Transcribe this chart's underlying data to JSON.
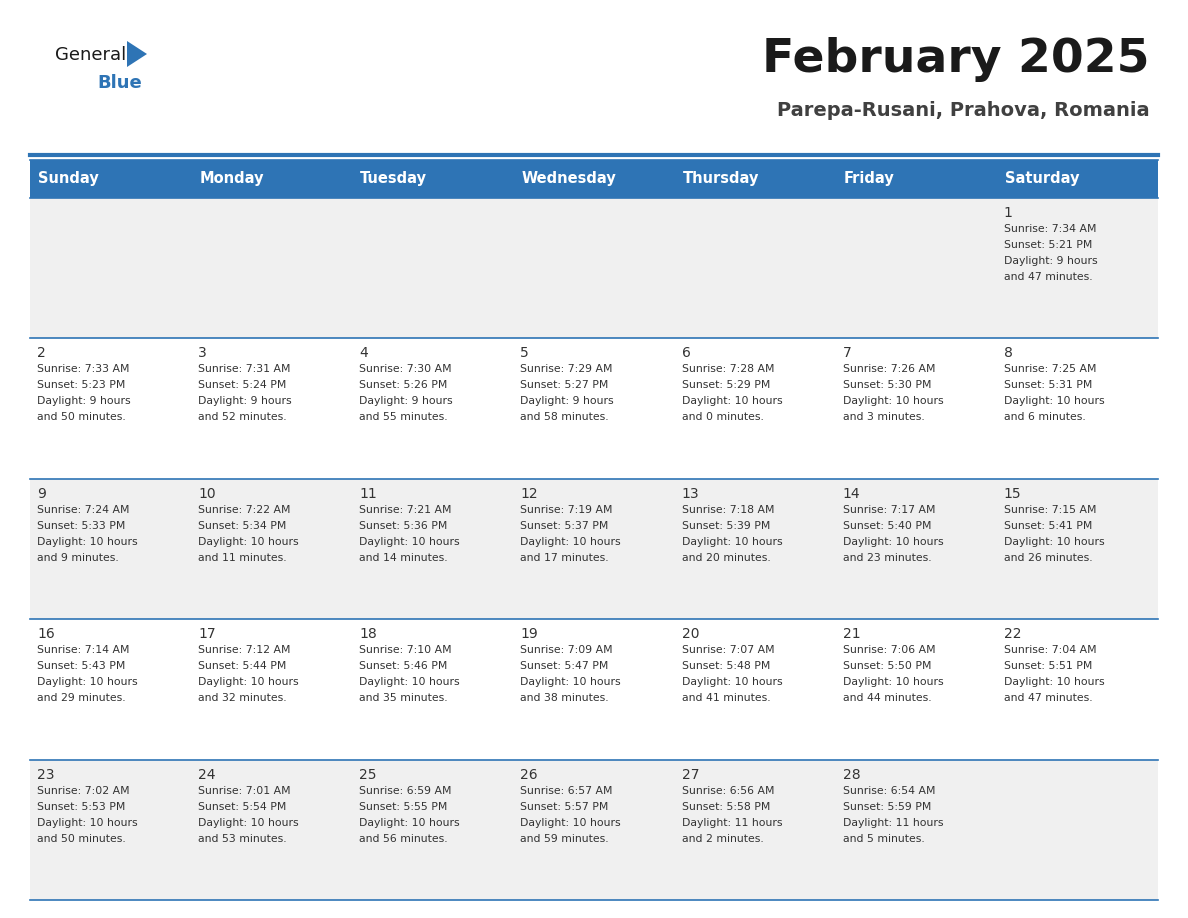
{
  "title": "February 2025",
  "subtitle": "Parepa-Rusani, Prahova, Romania",
  "header_bg": "#2E74B5",
  "header_text_color": "#FFFFFF",
  "header_days": [
    "Sunday",
    "Monday",
    "Tuesday",
    "Wednesday",
    "Thursday",
    "Friday",
    "Saturday"
  ],
  "cell_bg_even": "#F0F0F0",
  "cell_bg_odd": "#FFFFFF",
  "separator_color": "#2E74B5",
  "day_number_color": "#333333",
  "text_color": "#333333",
  "logo_general_color": "#1A1A1A",
  "logo_blue_color": "#2E74B5",
  "calendar": [
    [
      null,
      null,
      null,
      null,
      null,
      null,
      {
        "day": 1,
        "sunrise": "7:34 AM",
        "sunset": "5:21 PM",
        "daylight": "9 hours and 47 minutes."
      }
    ],
    [
      {
        "day": 2,
        "sunrise": "7:33 AM",
        "sunset": "5:23 PM",
        "daylight": "9 hours and 50 minutes."
      },
      {
        "day": 3,
        "sunrise": "7:31 AM",
        "sunset": "5:24 PM",
        "daylight": "9 hours and 52 minutes."
      },
      {
        "day": 4,
        "sunrise": "7:30 AM",
        "sunset": "5:26 PM",
        "daylight": "9 hours and 55 minutes."
      },
      {
        "day": 5,
        "sunrise": "7:29 AM",
        "sunset": "5:27 PM",
        "daylight": "9 hours and 58 minutes."
      },
      {
        "day": 6,
        "sunrise": "7:28 AM",
        "sunset": "5:29 PM",
        "daylight": "10 hours and 0 minutes."
      },
      {
        "day": 7,
        "sunrise": "7:26 AM",
        "sunset": "5:30 PM",
        "daylight": "10 hours and 3 minutes."
      },
      {
        "day": 8,
        "sunrise": "7:25 AM",
        "sunset": "5:31 PM",
        "daylight": "10 hours and 6 minutes."
      }
    ],
    [
      {
        "day": 9,
        "sunrise": "7:24 AM",
        "sunset": "5:33 PM",
        "daylight": "10 hours and 9 minutes."
      },
      {
        "day": 10,
        "sunrise": "7:22 AM",
        "sunset": "5:34 PM",
        "daylight": "10 hours and 11 minutes."
      },
      {
        "day": 11,
        "sunrise": "7:21 AM",
        "sunset": "5:36 PM",
        "daylight": "10 hours and 14 minutes."
      },
      {
        "day": 12,
        "sunrise": "7:19 AM",
        "sunset": "5:37 PM",
        "daylight": "10 hours and 17 minutes."
      },
      {
        "day": 13,
        "sunrise": "7:18 AM",
        "sunset": "5:39 PM",
        "daylight": "10 hours and 20 minutes."
      },
      {
        "day": 14,
        "sunrise": "7:17 AM",
        "sunset": "5:40 PM",
        "daylight": "10 hours and 23 minutes."
      },
      {
        "day": 15,
        "sunrise": "7:15 AM",
        "sunset": "5:41 PM",
        "daylight": "10 hours and 26 minutes."
      }
    ],
    [
      {
        "day": 16,
        "sunrise": "7:14 AM",
        "sunset": "5:43 PM",
        "daylight": "10 hours and 29 minutes."
      },
      {
        "day": 17,
        "sunrise": "7:12 AM",
        "sunset": "5:44 PM",
        "daylight": "10 hours and 32 minutes."
      },
      {
        "day": 18,
        "sunrise": "7:10 AM",
        "sunset": "5:46 PM",
        "daylight": "10 hours and 35 minutes."
      },
      {
        "day": 19,
        "sunrise": "7:09 AM",
        "sunset": "5:47 PM",
        "daylight": "10 hours and 38 minutes."
      },
      {
        "day": 20,
        "sunrise": "7:07 AM",
        "sunset": "5:48 PM",
        "daylight": "10 hours and 41 minutes."
      },
      {
        "day": 21,
        "sunrise": "7:06 AM",
        "sunset": "5:50 PM",
        "daylight": "10 hours and 44 minutes."
      },
      {
        "day": 22,
        "sunrise": "7:04 AM",
        "sunset": "5:51 PM",
        "daylight": "10 hours and 47 minutes."
      }
    ],
    [
      {
        "day": 23,
        "sunrise": "7:02 AM",
        "sunset": "5:53 PM",
        "daylight": "10 hours and 50 minutes."
      },
      {
        "day": 24,
        "sunrise": "7:01 AM",
        "sunset": "5:54 PM",
        "daylight": "10 hours and 53 minutes."
      },
      {
        "day": 25,
        "sunrise": "6:59 AM",
        "sunset": "5:55 PM",
        "daylight": "10 hours and 56 minutes."
      },
      {
        "day": 26,
        "sunrise": "6:57 AM",
        "sunset": "5:57 PM",
        "daylight": "10 hours and 59 minutes."
      },
      {
        "day": 27,
        "sunrise": "6:56 AM",
        "sunset": "5:58 PM",
        "daylight": "11 hours and 2 minutes."
      },
      {
        "day": 28,
        "sunrise": "6:54 AM",
        "sunset": "5:59 PM",
        "daylight": "11 hours and 5 minutes."
      },
      null
    ]
  ]
}
